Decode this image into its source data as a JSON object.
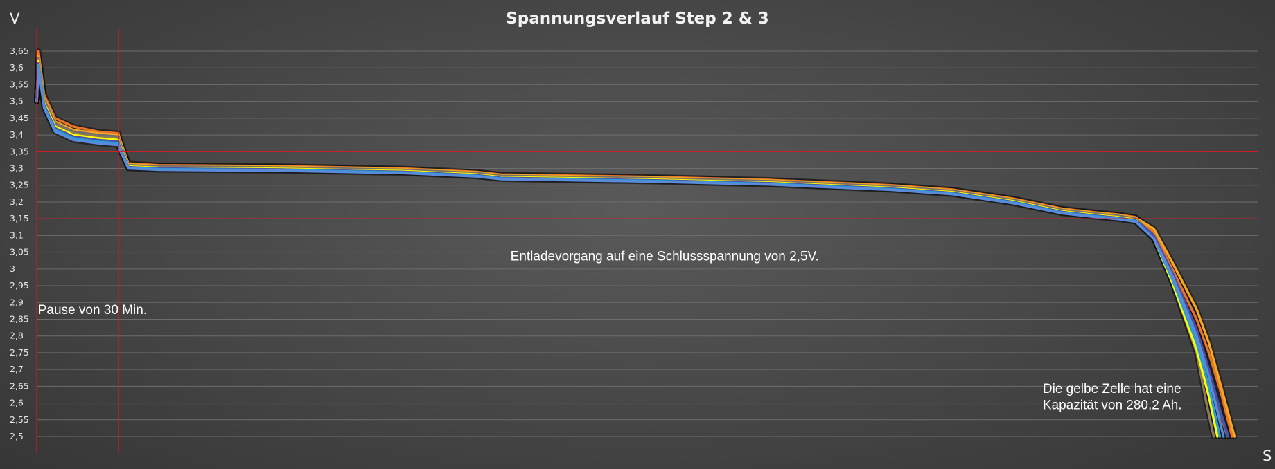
{
  "chart_data": {
    "type": "line",
    "title": "Spannungsverlauf Step 2 & 3",
    "ylabel": "V",
    "xlabel": "S",
    "ylim": [
      2.5,
      3.65
    ],
    "xlim": [
      0,
      100
    ],
    "grid": true,
    "legend": "none",
    "yticks": [
      {
        "value": 3.65,
        "label": "3,65"
      },
      {
        "value": 3.6,
        "label": "3,6"
      },
      {
        "value": 3.55,
        "label": "3,55"
      },
      {
        "value": 3.5,
        "label": "3,5"
      },
      {
        "value": 3.45,
        "label": "3,45"
      },
      {
        "value": 3.4,
        "label": "3,4"
      },
      {
        "value": 3.35,
        "label": "3,35"
      },
      {
        "value": 3.3,
        "label": "3,3"
      },
      {
        "value": 3.25,
        "label": "3,25"
      },
      {
        "value": 3.2,
        "label": "3,2"
      },
      {
        "value": 3.15,
        "label": "3,15"
      },
      {
        "value": 3.1,
        "label": "3,1"
      },
      {
        "value": 3.05,
        "label": "3,05"
      },
      {
        "value": 3.0,
        "label": "3"
      },
      {
        "value": 2.95,
        "label": "2,95"
      },
      {
        "value": 2.9,
        "label": "2,9"
      },
      {
        "value": 2.85,
        "label": "2,85"
      },
      {
        "value": 2.8,
        "label": "2,8"
      },
      {
        "value": 2.75,
        "label": "2,75"
      },
      {
        "value": 2.7,
        "label": "2,7"
      },
      {
        "value": 2.65,
        "label": "2,65"
      },
      {
        "value": 2.6,
        "label": "2,6"
      },
      {
        "value": 2.55,
        "label": "2,55"
      },
      {
        "value": 2.5,
        "label": "2,5"
      }
    ],
    "reference_lines": {
      "horizontal": [
        3.35,
        3.15
      ],
      "vertical": [
        6.7
      ],
      "color": "#e0141e"
    },
    "annotations": [
      {
        "text": "Pause von 30 Min.",
        "x": 0.1,
        "y": 2.865
      },
      {
        "text": "Entladevorgang auf eine Schlussspannung von 2,5V.",
        "x": 38.8,
        "y": 3.025
      },
      {
        "text": "Die gelbe Zelle hat eine",
        "x": 82.4,
        "y": 2.63
      },
      {
        "text": "Kapazität von 280,2 Ah.",
        "x": 82.4,
        "y": 2.582
      }
    ],
    "series": [
      {
        "color": "#e8742a",
        "x": [
          0,
          0.15,
          0.6,
          1.5,
          3,
          5,
          6.7,
          6.75,
          7.5,
          10,
          20,
          30,
          36,
          38,
          50,
          60,
          70,
          75,
          80,
          84,
          87,
          88.5,
          90,
          91.5,
          93,
          95,
          96,
          97,
          97.9
        ],
        "y": [
          3.5,
          3.65,
          3.52,
          3.45,
          3.425,
          3.41,
          3.405,
          3.395,
          3.315,
          3.31,
          3.307,
          3.3,
          3.29,
          3.282,
          3.275,
          3.266,
          3.25,
          3.237,
          3.21,
          3.18,
          3.168,
          3.163,
          3.155,
          3.11,
          3.0,
          2.85,
          2.75,
          2.63,
          2.5
        ]
      },
      {
        "color": "#f5a623",
        "x": [
          0,
          0.15,
          0.6,
          1.5,
          3,
          5,
          6.7,
          6.75,
          7.5,
          10,
          20,
          30,
          36,
          38,
          50,
          60,
          70,
          75,
          80,
          84,
          87,
          88.5,
          90,
          91.5,
          93,
          95,
          96,
          97,
          98.1
        ],
        "y": [
          3.5,
          3.635,
          3.51,
          3.44,
          3.415,
          3.405,
          3.4,
          3.39,
          3.312,
          3.308,
          3.305,
          3.298,
          3.288,
          3.28,
          3.273,
          3.264,
          3.248,
          3.235,
          3.208,
          3.178,
          3.166,
          3.161,
          3.153,
          3.12,
          3.02,
          2.88,
          2.78,
          2.65,
          2.5
        ]
      },
      {
        "color": "#6e6e6e",
        "x": [
          0,
          0.15,
          0.6,
          1.5,
          3,
          5,
          6.7,
          6.75,
          7.5,
          10,
          20,
          30,
          36,
          38,
          50,
          60,
          70,
          75,
          80,
          84,
          87,
          88.5,
          90,
          91.5,
          93,
          95,
          96,
          97,
          97.5
        ],
        "y": [
          3.5,
          3.63,
          3.505,
          3.435,
          3.41,
          3.4,
          3.395,
          3.385,
          3.31,
          3.306,
          3.303,
          3.296,
          3.286,
          3.278,
          3.271,
          3.262,
          3.246,
          3.233,
          3.206,
          3.176,
          3.164,
          3.159,
          3.151,
          3.1,
          2.98,
          2.8,
          2.68,
          2.56,
          2.5
        ]
      },
      {
        "color": "#8a7a5a",
        "x": [
          0,
          0.15,
          0.6,
          1.5,
          3,
          5,
          6.7,
          6.75,
          7.5,
          10,
          20,
          30,
          36,
          38,
          50,
          60,
          70,
          75,
          80,
          84,
          87,
          88.5,
          90,
          91.5,
          93,
          95,
          95.8,
          96.4
        ],
        "y": [
          3.5,
          3.625,
          3.5,
          3.43,
          3.405,
          3.395,
          3.39,
          3.38,
          3.308,
          3.304,
          3.301,
          3.294,
          3.284,
          3.276,
          3.269,
          3.26,
          3.244,
          3.231,
          3.204,
          3.174,
          3.162,
          3.157,
          3.149,
          3.09,
          2.96,
          2.75,
          2.6,
          2.5
        ]
      },
      {
        "color": "#ffff00",
        "x": [
          0,
          0.15,
          0.6,
          1.5,
          3,
          5,
          6.7,
          6.75,
          7.5,
          10,
          20,
          30,
          36,
          38,
          50,
          60,
          70,
          75,
          80,
          84,
          87,
          88.5,
          90,
          91.5,
          93,
          95,
          96,
          96.7
        ],
        "y": [
          3.5,
          3.62,
          3.495,
          3.425,
          3.4,
          3.39,
          3.385,
          3.375,
          3.306,
          3.302,
          3.299,
          3.292,
          3.282,
          3.274,
          3.267,
          3.258,
          3.242,
          3.229,
          3.202,
          3.172,
          3.16,
          3.155,
          3.147,
          3.09,
          2.96,
          2.76,
          2.62,
          2.5
        ]
      },
      {
        "color": "#4a4fa8",
        "x": [
          0,
          0.15,
          0.6,
          1.5,
          3,
          5,
          6.7,
          6.75,
          7.5,
          10,
          20,
          30,
          36,
          38,
          50,
          60,
          70,
          75,
          80,
          84,
          87,
          88.5,
          90,
          91.5,
          93,
          95,
          96,
          97,
          97.6
        ],
        "y": [
          3.5,
          3.615,
          3.49,
          3.42,
          3.395,
          3.385,
          3.38,
          3.37,
          3.304,
          3.3,
          3.297,
          3.29,
          3.28,
          3.272,
          3.265,
          3.256,
          3.24,
          3.227,
          3.2,
          3.17,
          3.158,
          3.153,
          3.145,
          3.1,
          2.99,
          2.82,
          2.7,
          2.57,
          2.5
        ]
      },
      {
        "color": "#2a9cd6",
        "x": [
          0,
          0.15,
          0.6,
          1.5,
          3,
          5,
          6.7,
          6.75,
          7.5,
          10,
          20,
          30,
          36,
          38,
          50,
          60,
          70,
          75,
          80,
          84,
          87,
          88.5,
          90,
          91.5,
          93,
          95,
          96,
          96.9
        ],
        "y": [
          3.5,
          3.61,
          3.485,
          3.415,
          3.39,
          3.38,
          3.375,
          3.365,
          3.302,
          3.298,
          3.295,
          3.288,
          3.278,
          3.27,
          3.263,
          3.254,
          3.238,
          3.225,
          3.198,
          3.168,
          3.156,
          3.151,
          3.143,
          3.09,
          2.97,
          2.78,
          2.65,
          2.5
        ]
      },
      {
        "color": "#5b8bd8",
        "x": [
          0,
          0.15,
          0.6,
          1.5,
          3,
          5,
          6.7,
          6.75,
          7.5,
          10,
          20,
          30,
          36,
          38,
          50,
          60,
          70,
          75,
          80,
          84,
          87,
          88.5,
          90,
          91.5,
          93,
          95,
          96,
          97.2
        ],
        "y": [
          3.5,
          3.6,
          3.48,
          3.41,
          3.385,
          3.375,
          3.37,
          3.36,
          3.3,
          3.296,
          3.293,
          3.286,
          3.276,
          3.268,
          3.261,
          3.252,
          3.236,
          3.223,
          3.196,
          3.166,
          3.154,
          3.149,
          3.141,
          3.09,
          2.98,
          2.8,
          2.68,
          2.5
        ]
      }
    ]
  }
}
